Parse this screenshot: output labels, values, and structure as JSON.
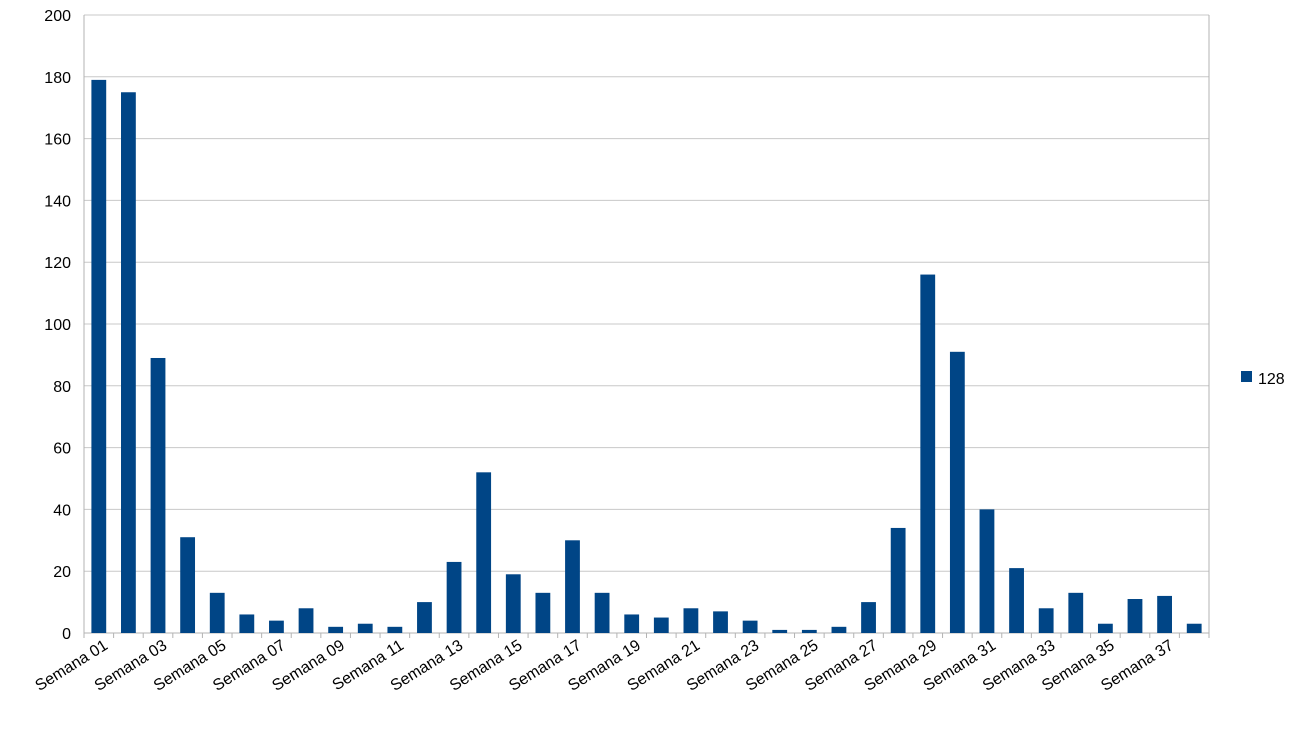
{
  "chart_data": {
    "type": "bar",
    "categories": [
      "Semana 01",
      "Semana 02",
      "Semana 03",
      "Semana 04",
      "Semana 05",
      "Semana 06",
      "Semana 07",
      "Semana 08",
      "Semana 09",
      "Semana 10",
      "Semana 11",
      "Semana 12",
      "Semana 13",
      "Semana 14",
      "Semana 15",
      "Semana 16",
      "Semana 17",
      "Semana 18",
      "Semana 19",
      "Semana 20",
      "Semana 21",
      "Semana 22",
      "Semana 23",
      "Semana 24",
      "Semana 25",
      "Semana 26",
      "Semana 27",
      "Semana 28",
      "Semana 29",
      "Semana 30",
      "Semana 31",
      "Semana 32",
      "Semana 33",
      "Semana 34",
      "Semana 35",
      "Semana 36",
      "Semana 37",
      "Semana 38"
    ],
    "category_labels_shown": [
      "Semana 01",
      "Semana 03",
      "Semana 05",
      "Semana 07",
      "Semana 09",
      "Semana 11",
      "Semana 13",
      "Semana 15",
      "Semana 17",
      "Semana 19",
      "Semana 21",
      "Semana 23",
      "Semana 25",
      "Semana 27",
      "Semana 29",
      "Semana 31",
      "Semana 33",
      "Semana 35",
      "Semana 37"
    ],
    "series": [
      {
        "name": "128",
        "color": "#004586",
        "values": [
          179,
          175,
          89,
          31,
          13,
          6,
          4,
          8,
          2,
          3,
          2,
          10,
          23,
          52,
          19,
          13,
          30,
          13,
          6,
          5,
          8,
          7,
          4,
          1,
          1,
          2,
          10,
          34,
          116,
          91,
          40,
          21,
          8,
          13,
          3,
          11,
          12,
          3
        ]
      }
    ],
    "y_ticks": [
      "0",
      "20",
      "40",
      "60",
      "80",
      "100",
      "120",
      "140",
      "160",
      "180",
      "200"
    ],
    "ylim": [
      0,
      200
    ],
    "grid": "horizontal",
    "legend_position": "right",
    "title": "",
    "xlabel": "",
    "ylabel": ""
  }
}
